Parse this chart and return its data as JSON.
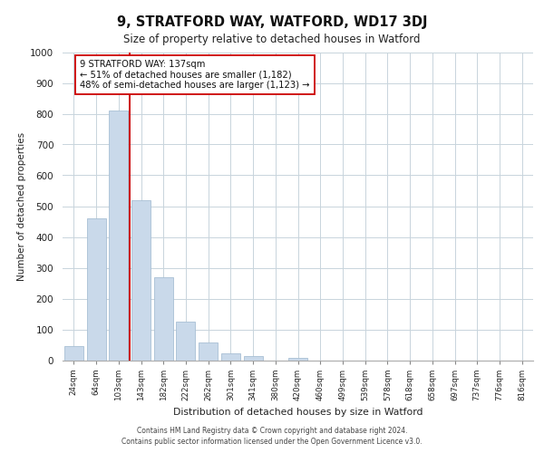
{
  "title": "9, STRATFORD WAY, WATFORD, WD17 3DJ",
  "subtitle": "Size of property relative to detached houses in Watford",
  "xlabel": "Distribution of detached houses by size in Watford",
  "ylabel": "Number of detached properties",
  "bar_labels": [
    "24sqm",
    "64sqm",
    "103sqm",
    "143sqm",
    "182sqm",
    "222sqm",
    "262sqm",
    "301sqm",
    "341sqm",
    "380sqm",
    "420sqm",
    "460sqm",
    "499sqm",
    "539sqm",
    "578sqm",
    "618sqm",
    "658sqm",
    "697sqm",
    "737sqm",
    "776sqm",
    "816sqm"
  ],
  "bar_values": [
    45,
    460,
    810,
    520,
    270,
    125,
    57,
    22,
    13,
    0,
    8,
    0,
    0,
    0,
    0,
    0,
    0,
    0,
    0,
    0,
    0
  ],
  "bar_color": "#c9d9ea",
  "bar_edge_color": "#a8bfd4",
  "property_line_color": "#cc0000",
  "annotation_text": "9 STRATFORD WAY: 137sqm\n← 51% of detached houses are smaller (1,182)\n48% of semi-detached houses are larger (1,123) →",
  "annotation_box_facecolor": "#ffffff",
  "annotation_box_edgecolor": "#cc0000",
  "ylim": [
    0,
    1000
  ],
  "yticks": [
    0,
    100,
    200,
    300,
    400,
    500,
    600,
    700,
    800,
    900,
    1000
  ],
  "footer_line1": "Contains HM Land Registry data © Crown copyright and database right 2024.",
  "footer_line2": "Contains public sector information licensed under the Open Government Licence v3.0.",
  "background_color": "#ffffff",
  "grid_color": "#c8d4dc"
}
